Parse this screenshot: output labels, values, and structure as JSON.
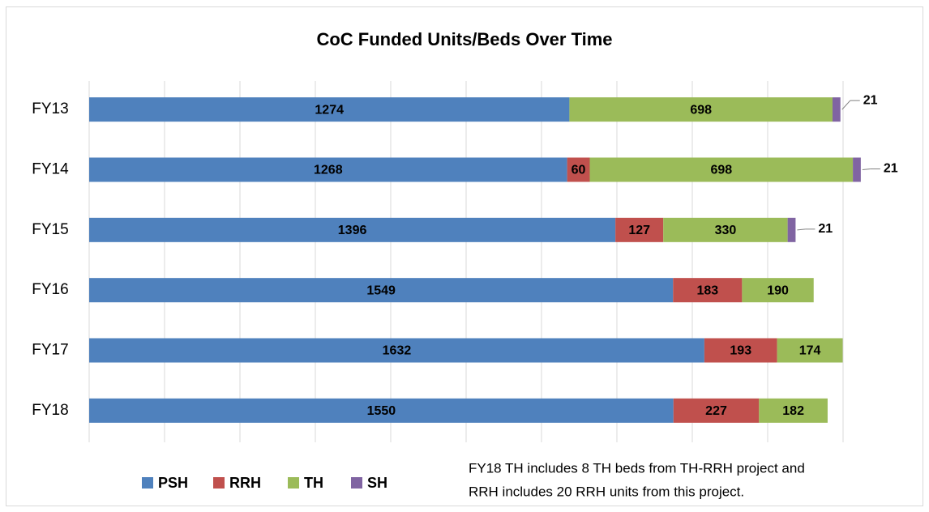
{
  "chart_data": {
    "type": "stacked-barh",
    "title": "CoC Funded Units/Beds Over Time",
    "categories": [
      "FY13",
      "FY14",
      "FY15",
      "FY16",
      "FY17",
      "FY18"
    ],
    "series": [
      {
        "name": "PSH",
        "color": "#4f81bd",
        "values": [
          1274,
          1268,
          1396,
          1549,
          1632,
          1550
        ]
      },
      {
        "name": "RRH",
        "color": "#c0504d",
        "values": [
          null,
          60,
          127,
          183,
          193,
          227
        ]
      },
      {
        "name": "TH",
        "color": "#9bbb59",
        "values": [
          698,
          698,
          330,
          190,
          174,
          182
        ]
      },
      {
        "name": "SH",
        "color": "#8064a2",
        "values": [
          21,
          21,
          21,
          null,
          null,
          null
        ]
      }
    ],
    "xlim": [
      0,
      2000
    ],
    "xticks": [
      0,
      200,
      400,
      600,
      800,
      1000,
      1200,
      1400,
      1600,
      1800,
      2000
    ],
    "grid": true,
    "legend": "bottom",
    "annotation": [
      "FY18 TH includes 8 TH beds from TH-RRH project and",
      "RRH includes 20 RRH units from this project."
    ]
  }
}
